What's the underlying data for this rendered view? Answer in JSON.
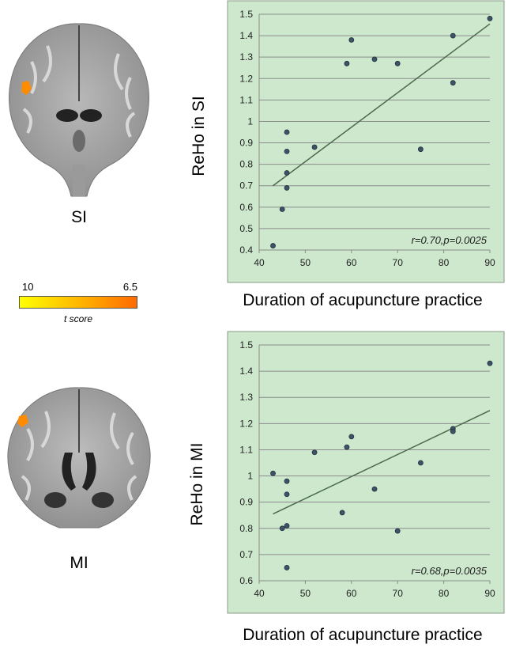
{
  "regions": {
    "top_label": "SI",
    "bottom_label": "MI"
  },
  "colorbar": {
    "min_label": "10",
    "max_label": "6.5",
    "title": "t score",
    "colors": [
      "#ffff00",
      "#ffb000",
      "#ff6a00"
    ]
  },
  "chart_data": [
    {
      "type": "scatter",
      "ylabel": "ReHo in SI",
      "xlabel": "Duration of acupuncture practice",
      "annotation": "r=0.70,p=0.0025",
      "xlim": [
        40,
        90
      ],
      "ylim": [
        0.4,
        1.5
      ],
      "xticks": [
        40,
        50,
        60,
        70,
        80,
        90
      ],
      "yticks": [
        0.4,
        0.5,
        0.6,
        0.7,
        0.8,
        0.9,
        1,
        1.1,
        1.2,
        1.3,
        1.4,
        1.5
      ],
      "grid": "horizontal",
      "background": "#cde8cd",
      "points": [
        {
          "x": 43,
          "y": 0.42
        },
        {
          "x": 45,
          "y": 0.59
        },
        {
          "x": 46,
          "y": 0.69
        },
        {
          "x": 46,
          "y": 0.76
        },
        {
          "x": 46,
          "y": 0.86
        },
        {
          "x": 46,
          "y": 0.95
        },
        {
          "x": 52,
          "y": 0.88
        },
        {
          "x": 59,
          "y": 1.27
        },
        {
          "x": 60,
          "y": 1.38
        },
        {
          "x": 65,
          "y": 1.29
        },
        {
          "x": 70,
          "y": 1.27
        },
        {
          "x": 75,
          "y": 0.87
        },
        {
          "x": 82,
          "y": 1.4
        },
        {
          "x": 82,
          "y": 1.18
        },
        {
          "x": 90,
          "y": 1.48
        }
      ],
      "fit": {
        "x": [
          43,
          90
        ],
        "y": [
          0.7,
          1.455
        ]
      }
    },
    {
      "type": "scatter",
      "ylabel": "ReHo in MI",
      "xlabel": "Duration of acupuncture practice",
      "annotation": "r=0.68,p=0.0035",
      "xlim": [
        40,
        90
      ],
      "ylim": [
        0.6,
        1.5
      ],
      "xticks": [
        40,
        50,
        60,
        70,
        80,
        90
      ],
      "yticks": [
        0.6,
        0.7,
        0.8,
        0.9,
        1,
        1.1,
        1.2,
        1.3,
        1.4,
        1.5
      ],
      "grid": "horizontal",
      "background": "#cde8cd",
      "points": [
        {
          "x": 43,
          "y": 1.01
        },
        {
          "x": 45,
          "y": 0.8
        },
        {
          "x": 46,
          "y": 0.81
        },
        {
          "x": 46,
          "y": 0.65
        },
        {
          "x": 46,
          "y": 0.93
        },
        {
          "x": 46,
          "y": 0.98
        },
        {
          "x": 52,
          "y": 1.09
        },
        {
          "x": 58,
          "y": 0.86
        },
        {
          "x": 59,
          "y": 1.11
        },
        {
          "x": 60,
          "y": 1.15
        },
        {
          "x": 65,
          "y": 0.95
        },
        {
          "x": 70,
          "y": 0.79
        },
        {
          "x": 75,
          "y": 1.05
        },
        {
          "x": 82,
          "y": 1.18
        },
        {
          "x": 82,
          "y": 1.17
        },
        {
          "x": 90,
          "y": 1.43
        }
      ],
      "fit": {
        "x": [
          43,
          90
        ],
        "y": [
          0.855,
          1.25
        ]
      }
    }
  ]
}
